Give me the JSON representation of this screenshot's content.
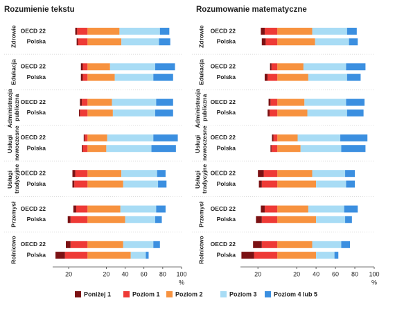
{
  "chart_data": [
    {
      "type": "diverging-bar",
      "title": "Rozumienie tekstu",
      "x_label": "%",
      "groups": [
        "Zdrowie",
        "Edukacja",
        "Administracja publiczna",
        "Usługi nowoczesne",
        "Usługi tradycyjne",
        "Przemysł",
        "Rolnictwo"
      ],
      "categories": [
        "OECD 22",
        "Polska",
        "OECD 22",
        "Polska",
        "OECD 22",
        "Polska",
        "OECD 22",
        "Polska",
        "OECD 22",
        "Polska",
        "OECD 22",
        "Polska",
        "OECD 22",
        "Polska"
      ],
      "xlim": [
        -37,
        100
      ],
      "xticks": [
        {
          "value": -20,
          "label": "20"
        },
        20,
        40,
        60,
        80,
        100
      ],
      "series": [
        {
          "name": "Poniżej 1",
          "color": "#7b1113",
          "side": "negative",
          "values": [
            2,
            1.5,
            2,
            2,
            2,
            1,
            1,
            1,
            3,
            2,
            3,
            3,
            5,
            10
          ]
        },
        {
          "name": "Poziom 1",
          "color": "#ee3a36",
          "side": "negative",
          "values": [
            11,
            10,
            5,
            5,
            6,
            8,
            3,
            5,
            13,
            14,
            12,
            18,
            18,
            24
          ]
        },
        {
          "name": "Poziom 2",
          "color": "#f7923f",
          "side": "positive",
          "values": [
            34,
            36,
            24,
            29,
            26,
            27,
            21,
            20,
            36,
            38,
            35,
            40,
            38,
            46
          ]
        },
        {
          "name": "Poziom 3",
          "color": "#a8dcf5",
          "side": "positive",
          "values": [
            43,
            40,
            48,
            41,
            47,
            45,
            49,
            48,
            38,
            37,
            38,
            32,
            32,
            16
          ]
        },
        {
          "name": "Poziom 4 lub 5",
          "color": "#3b8fe0",
          "side": "positive",
          "values": [
            10,
            12,
            21,
            21,
            18,
            19,
            26,
            26,
            9,
            9,
            10,
            7,
            7,
            3
          ]
        }
      ]
    },
    {
      "type": "diverging-bar",
      "title": "Rozumowanie matematyczne",
      "x_label": "%",
      "groups": [
        "Zdrowie",
        "Edukacja",
        "Administracja publiczna",
        "Usługi nowoczesne",
        "Usługi tradycyjne",
        "Przemysł",
        "Rolnictwo"
      ],
      "categories": [
        "OECD 22",
        "Polska",
        "OECD 22",
        "Polska",
        "OECD 22",
        "Polska",
        "OECD 22",
        "Polska",
        "OECD 22",
        "Polska",
        "OECD 22",
        "Polska",
        "OECD 22",
        "Polska"
      ],
      "xlim": [
        -38,
        100
      ],
      "xticks": [
        {
          "value": -20,
          "label": "20"
        },
        20,
        40,
        60,
        80,
        100
      ],
      "series": [
        {
          "color": "#7b1113",
          "side": "negative",
          "values": [
            4,
            4,
            1.5,
            3,
            2,
            2,
            1.5,
            1,
            6,
            3,
            4,
            6,
            9,
            13
          ]
        },
        {
          "color": "#ee3a36",
          "side": "negative",
          "values": [
            13,
            12,
            6,
            10,
            7,
            8,
            4,
            6,
            14,
            16,
            13,
            16,
            16,
            24
          ]
        },
        {
          "color": "#f7923f",
          "side": "positive",
          "values": [
            36,
            39,
            27,
            32,
            28,
            31,
            21,
            24,
            36,
            40,
            32,
            40,
            36,
            40
          ]
        },
        {
          "color": "#a8dcf5",
          "side": "positive",
          "values": [
            36,
            35,
            44,
            40,
            43,
            41,
            44,
            42,
            34,
            31,
            37,
            30,
            30,
            19
          ]
        },
        {
          "color": "#3b8fe0",
          "side": "positive",
          "values": [
            10,
            9,
            20,
            14,
            19,
            17,
            28,
            25,
            10,
            9,
            14,
            7,
            9,
            4
          ]
        }
      ]
    }
  ]
}
